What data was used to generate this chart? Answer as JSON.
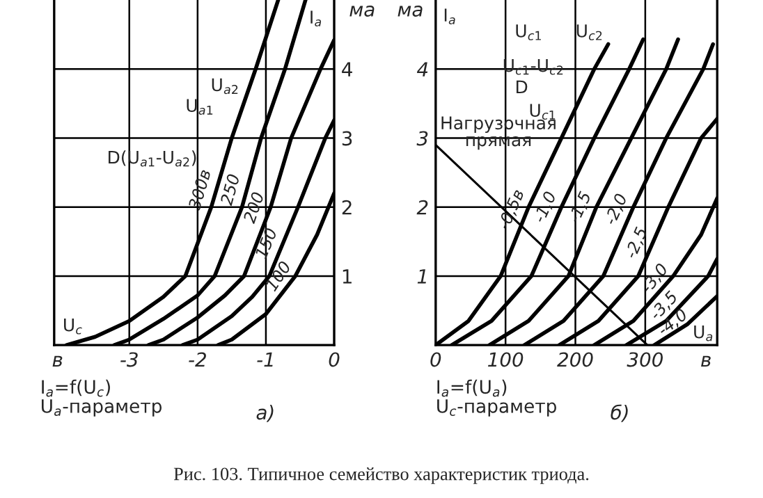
{
  "chart_data": [
    {
      "type": "line",
      "xlabel": "I$_{a}$=f(U$_{c}$)\nU$_{a}$-параметр",
      "ylabel": "ма",
      "xlim": [
        -4.1,
        0
      ],
      "ylim": [
        0,
        5
      ],
      "xticks": [
        {
          "value": -4.05,
          "label": "в"
        },
        -3,
        -2,
        -1,
        0
      ],
      "yticks": [
        1,
        2,
        3,
        4
      ],
      "grid": true,
      "series": [
        {
          "name": "300в",
          "color": "#000000",
          "x": [
            -3.92,
            -3.5,
            -3,
            -2.5,
            -2.18,
            -1.8,
            -1.5,
            -1.15,
            -0.82
          ],
          "values": [
            0,
            0.12,
            0.35,
            0.7,
            1.0,
            2.0,
            3.0,
            4.0,
            5.0
          ]
        },
        {
          "name": "250",
          "color": "#000000",
          "x": [
            -3.22,
            -3.0,
            -2.5,
            -2.0,
            -1.75,
            -1.35,
            -1.07,
            -0.72,
            -0.42
          ],
          "values": [
            0,
            0.08,
            0.38,
            0.72,
            1.0,
            2.0,
            3.0,
            4.0,
            5.0
          ]
        },
        {
          "name": "200",
          "color": "#000000",
          "x": [
            -2.72,
            -2.5,
            -2.0,
            -1.6,
            -1.32,
            -0.93,
            -0.63,
            -0.2,
            0
          ],
          "values": [
            0,
            0.08,
            0.4,
            0.72,
            1.0,
            2.0,
            3.0,
            4.0,
            4.42
          ]
        },
        {
          "name": "150",
          "color": "#000000",
          "x": [
            -2.22,
            -2.0,
            -1.5,
            -1.2,
            -0.95,
            -0.53,
            -0.13,
            0
          ],
          "values": [
            0,
            0.08,
            0.42,
            0.7,
            1.0,
            2.0,
            3.0,
            3.26
          ]
        },
        {
          "name": "100",
          "color": "#000000",
          "x": [
            -1.7,
            -1.5,
            -1.0,
            -0.57,
            -0.25,
            0
          ],
          "values": [
            0,
            0.08,
            0.45,
            1.0,
            1.6,
            2.2
          ]
        }
      ],
      "annotations": [
        "I$_{a}$",
        "U$_{a2}$",
        "U$_{a1}$",
        "D(U$_{a1}$-U$_{a2}$)",
        "U$_{c}$",
        "а)"
      ]
    },
    {
      "type": "line",
      "xlabel": "I$_{a}$=f(U$_{a}$)\nU$_{c}$-параметр",
      "ylabel": "ма",
      "xlim": [
        0,
        403
      ],
      "ylim": [
        0,
        5
      ],
      "xticks": [
        0,
        100,
        200,
        300,
        {
          "value": 387,
          "label": "в"
        }
      ],
      "yticks": [
        1,
        2,
        3,
        4
      ],
      "grid": true,
      "series": [
        {
          "name": "-0,5в",
          "color": "#000000",
          "x": [
            0,
            47,
            93,
            133,
            180,
            227,
            247
          ],
          "values": [
            0,
            0.35,
            1,
            2,
            3,
            4,
            4.36
          ]
        },
        {
          "name": "-1,0",
          "color": "#000000",
          "x": [
            23,
            80,
            137,
            180,
            227,
            277,
            297
          ],
          "values": [
            0,
            0.35,
            1,
            2,
            3,
            4,
            4.43
          ]
        },
        {
          "name": "-1,5",
          "color": "#000000",
          "x": [
            77,
            133,
            190,
            230,
            280,
            330,
            347
          ],
          "values": [
            0,
            0.35,
            1,
            2,
            3,
            4,
            4.43
          ]
        },
        {
          "name": "-2,0",
          "color": "#000000",
          "x": [
            127,
            183,
            240,
            283,
            330,
            383,
            397
          ],
          "values": [
            0,
            0.35,
            1,
            2,
            3,
            4,
            4.36
          ]
        },
        {
          "name": "-2,5",
          "color": "#000000",
          "x": [
            177,
            233,
            290,
            333,
            380,
            403
          ],
          "values": [
            0,
            0.35,
            1,
            2,
            3,
            3.28
          ]
        },
        {
          "name": "-3,0",
          "color": "#000000",
          "x": [
            227,
            283,
            340,
            380,
            403
          ],
          "values": [
            0,
            0.35,
            1,
            1.6,
            2.13
          ]
        },
        {
          "name": "-3,5",
          "color": "#000000",
          "x": [
            273,
            330,
            390,
            403
          ],
          "values": [
            0,
            0.35,
            1,
            1.25
          ]
        },
        {
          "name": "-4,0",
          "color": "#000000",
          "x": [
            313,
            360,
            403
          ],
          "values": [
            0,
            0.3,
            0.71
          ]
        },
        {
          "color": "#000000",
          "x": [
            0,
            303
          ],
          "values": [
            2.9,
            0
          ]
        }
      ],
      "annotations": [
        "I$_{a}$",
        "U$_{c1}$",
        "U$_{c2}$",
        "U$_{c1}$-U$_{c2}$",
        "D",
        "U$_{c1}$",
        "Нагрузочная\nпрямая",
        "U$_{a}$",
        "б)",
        "Рис. 103. Типичное семейство характеристик триода."
      ]
    }
  ]
}
